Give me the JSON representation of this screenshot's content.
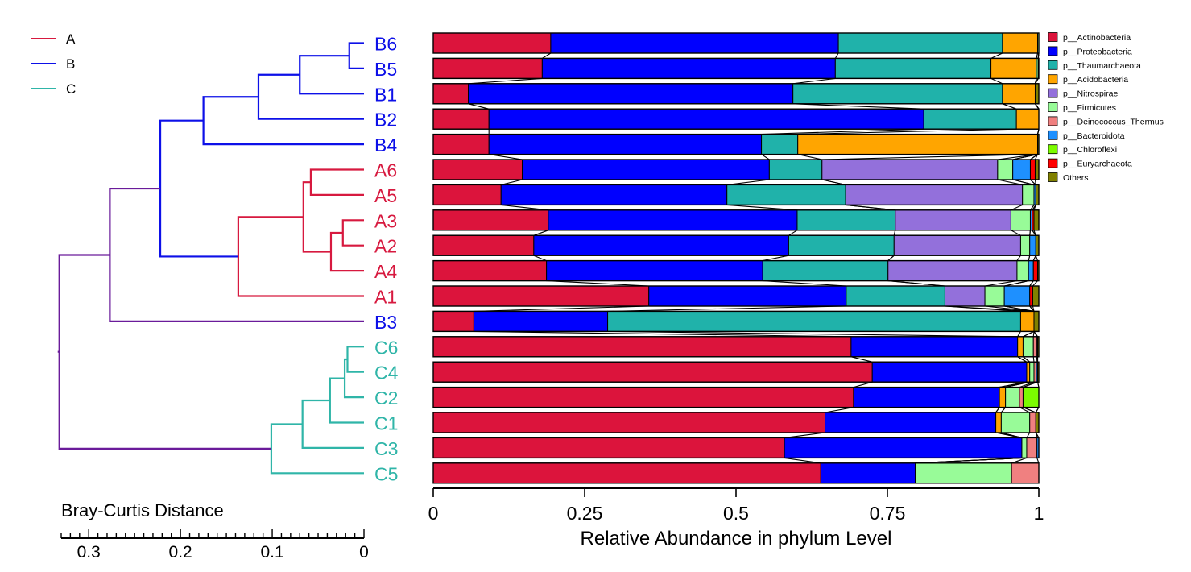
{
  "chart_data": [
    {
      "type": "dendrogram",
      "title": "",
      "scale_label": "Bray-Curtis Distance",
      "xlim": [
        0,
        0.33
      ],
      "xticks": [
        "0",
        "0.1",
        "0.2",
        "0.3"
      ],
      "legend": [
        {
          "label": "A",
          "color": "#d7193f"
        },
        {
          "label": "B",
          "color": "#0d10e8"
        },
        {
          "label": "C",
          "color": "#2fb5a8"
        }
      ],
      "leaves": [
        {
          "label": "B6",
          "group": "B"
        },
        {
          "label": "B5",
          "group": "B"
        },
        {
          "label": "B1",
          "group": "B"
        },
        {
          "label": "B2",
          "group": "B"
        },
        {
          "label": "B4",
          "group": "B"
        },
        {
          "label": "A6",
          "group": "A"
        },
        {
          "label": "A5",
          "group": "A"
        },
        {
          "label": "A3",
          "group": "A"
        },
        {
          "label": "A2",
          "group": "A"
        },
        {
          "label": "A4",
          "group": "A"
        },
        {
          "label": "A1",
          "group": "A"
        },
        {
          "label": "B3",
          "group": "B"
        },
        {
          "label": "C6",
          "group": "C"
        },
        {
          "label": "C4",
          "group": "C"
        },
        {
          "label": "C2",
          "group": "C"
        },
        {
          "label": "C1",
          "group": "C"
        },
        {
          "label": "C3",
          "group": "C"
        },
        {
          "label": "C5",
          "group": "C"
        }
      ],
      "merges": [
        {
          "a": "B6",
          "b": "B5",
          "height": 0.016,
          "group": "B"
        },
        {
          "a": "B6+B5",
          "b": "B1",
          "height": 0.07,
          "group": "B"
        },
        {
          "a": "B6+B5+B1",
          "b": "B2",
          "height": 0.115,
          "group": "B"
        },
        {
          "a": "B6+B5+B1+B2",
          "b": "B4",
          "height": 0.175,
          "group": "B"
        },
        {
          "a": "A6",
          "b": "A5",
          "height": 0.058,
          "group": "A"
        },
        {
          "a": "A3",
          "b": "A2",
          "height": 0.023,
          "group": "A"
        },
        {
          "a": "A3+A2",
          "b": "A4",
          "height": 0.036,
          "group": "A"
        },
        {
          "a": "A6+A5",
          "b": "A3+A2+A4",
          "height": 0.066,
          "group": "A"
        },
        {
          "a": "A6+A5+A3+A2+A4",
          "b": "A1",
          "height": 0.137,
          "group": "A"
        },
        {
          "a": "B-cluster",
          "b": "A-cluster",
          "height": 0.222,
          "group": "B"
        },
        {
          "a": "A+B",
          "b": "B3",
          "height": 0.277,
          "group": "mixed"
        },
        {
          "a": "C6",
          "b": "C4",
          "height": 0.018,
          "group": "C"
        },
        {
          "a": "C6+C4",
          "b": "C2",
          "height": 0.021,
          "group": "C"
        },
        {
          "a": "C6+C4+C2",
          "b": "C1",
          "height": 0.037,
          "group": "C"
        },
        {
          "a": "C6+C4+C2+C1",
          "b": "C3",
          "height": 0.067,
          "group": "C"
        },
        {
          "a": "C6+C4+C2+C1+C3",
          "b": "C5",
          "height": 0.101,
          "group": "C"
        },
        {
          "a": "A+B+B3",
          "b": "C",
          "height": 0.332,
          "group": "mixed"
        }
      ]
    },
    {
      "type": "bar",
      "orientation": "horizontal",
      "stacked": true,
      "xlabel": "Relative Abundance in phylum Level",
      "ylabel": "",
      "xlim": [
        0,
        1
      ],
      "xticks": [
        "0",
        "0.25",
        "0.5",
        "0.75",
        "1"
      ],
      "legend_position": "right",
      "categories": [
        "B6",
        "B5",
        "B1",
        "B2",
        "B4",
        "A6",
        "A5",
        "A3",
        "A2",
        "A4",
        "A1",
        "B3",
        "C6",
        "C4",
        "C2",
        "C1",
        "C3",
        "C5"
      ],
      "series": [
        {
          "name": "p__Actinobacteria",
          "color": "#dc143c",
          "values": [
            0.194,
            0.18,
            0.058,
            0.092,
            0.092,
            0.147,
            0.112,
            0.19,
            0.166,
            0.187,
            0.356,
            0.067,
            0.69,
            0.725,
            0.694,
            0.647,
            0.58,
            0.64
          ]
        },
        {
          "name": "p__Proteobacteria",
          "color": "#0000ff",
          "values": [
            0.475,
            0.484,
            0.536,
            0.718,
            0.45,
            0.408,
            0.373,
            0.411,
            0.421,
            0.357,
            0.326,
            0.221,
            0.275,
            0.255,
            0.241,
            0.282,
            0.392,
            0.156
          ]
        },
        {
          "name": "p__Thaumarchaeota",
          "color": "#20b2aa",
          "values": [
            0.271,
            0.257,
            0.346,
            0.153,
            0.06,
            0.087,
            0.196,
            0.162,
            0.174,
            0.207,
            0.163,
            0.682,
            0,
            0,
            0,
            0,
            0,
            0
          ]
        },
        {
          "name": "p__Acidobacteria",
          "color": "#ffa500",
          "values": [
            0.058,
            0.075,
            0.054,
            0.037,
            0.396,
            0,
            0,
            0,
            0,
            0,
            0,
            0.022,
            0.009,
            0.005,
            0.01,
            0.009,
            0,
            0
          ]
        },
        {
          "name": "p__Nitrospirae",
          "color": "#9370db",
          "values": [
            0,
            0,
            0,
            0,
            0,
            0.29,
            0.292,
            0.191,
            0.209,
            0.213,
            0.066,
            0,
            0,
            0,
            0,
            0,
            0,
            0
          ]
        },
        {
          "name": "p__Firmicutes",
          "color": "#98fb98",
          "values": [
            0.002,
            0.003,
            0,
            0,
            0,
            0.025,
            0.019,
            0.032,
            0.015,
            0.019,
            0.032,
            0,
            0.017,
            0.007,
            0.023,
            0.047,
            0.008,
            0.159
          ]
        },
        {
          "name": "p__Deinococcus_Thermus",
          "color": "#f08080",
          "values": [
            0,
            0,
            0,
            0,
            0,
            0,
            0,
            0,
            0,
            0,
            0,
            0,
            0.006,
            0.004,
            0.006,
            0.01,
            0.017,
            0.045
          ]
        },
        {
          "name": "p__Bacteroidota",
          "color": "#1e90ff",
          "values": [
            0,
            0,
            0,
            0,
            0,
            0.029,
            0.003,
            0.003,
            0.01,
            0.008,
            0.042,
            0,
            0.001,
            0.002,
            0,
            0,
            0.003,
            0
          ]
        },
        {
          "name": "p__Chloroflexi",
          "color": "#7cfc00",
          "values": [
            0,
            0,
            0,
            0,
            0,
            0,
            0,
            0,
            0,
            0,
            0,
            0,
            0,
            0,
            0.026,
            0,
            0,
            0
          ]
        },
        {
          "name": "p__Euryarchaeota",
          "color": "#ff0000",
          "values": [
            0,
            0,
            0,
            0,
            0,
            0.008,
            0,
            0.003,
            0,
            0.007,
            0.005,
            0,
            0,
            0,
            0,
            0,
            0,
            0
          ]
        },
        {
          "name": "Others",
          "color": "#808000",
          "values": [
            0,
            0.001,
            0.006,
            0,
            0.002,
            0.006,
            0.005,
            0.008,
            0.005,
            0.002,
            0.01,
            0.008,
            0.002,
            0.002,
            0,
            0.005,
            0,
            0
          ]
        }
      ]
    }
  ]
}
